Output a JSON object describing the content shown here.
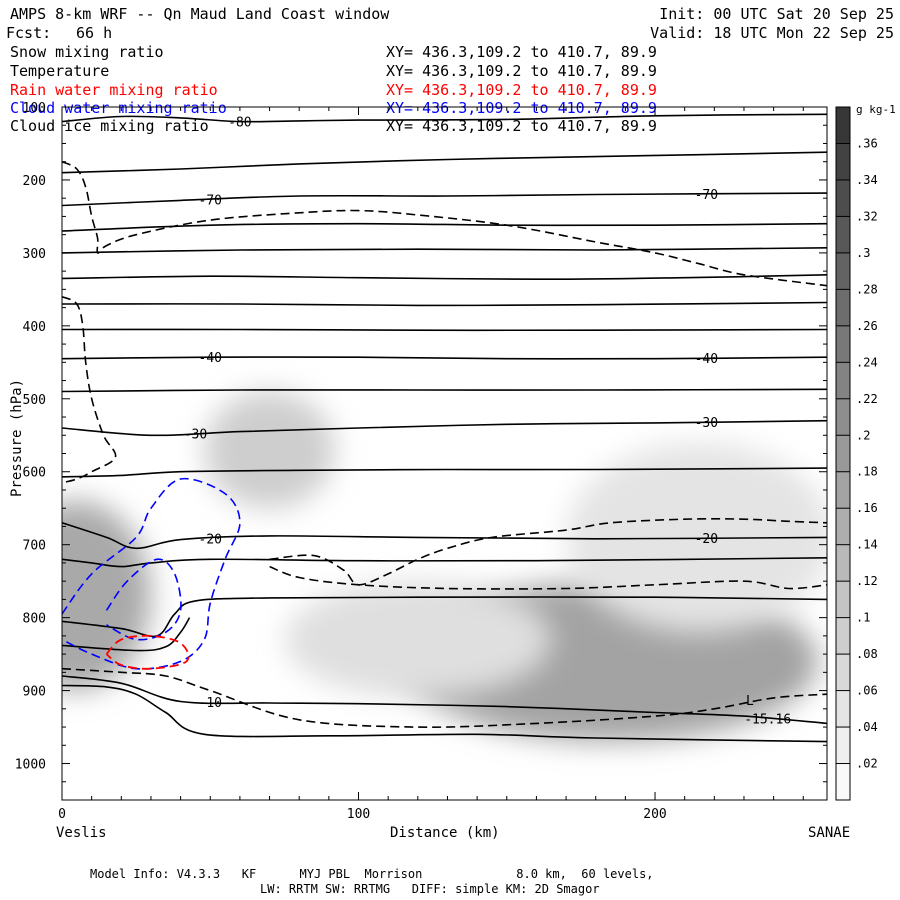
{
  "header": {
    "title": "AMPS 8-km WRF -- Qn Maud Land Coast window",
    "forecast_label": "Fcst:",
    "forecast_value": "66 h",
    "init": "Init: 00 UTC Sat 20 Sep 25",
    "valid": "Valid: 18 UTC Mon 22 Sep 25"
  },
  "legend": [
    {
      "name": "Snow mixing ratio",
      "xy": "XY= 436.3,109.2 to 410.7, 89.9",
      "color": "#000000"
    },
    {
      "name": "Temperature",
      "xy": "XY= 436.3,109.2 to 410.7, 89.9",
      "color": "#000000"
    },
    {
      "name": "Rain water mixing ratio",
      "xy": "XY= 436.3,109.2 to 410.7, 89.9",
      "color": "#ff0000"
    },
    {
      "name": "Cloud water mixing ratio",
      "xy": "XY= 436.3,109.2 to 410.7, 89.9",
      "color": "#0000ff"
    },
    {
      "name": "Cloud ice mixing ratio",
      "xy": "XY= 436.3,109.2 to 410.7, 89.9",
      "color": "#000000"
    }
  ],
  "footer": {
    "line1": "Model Info: V4.3.3   KF      MYJ PBL  Morrison             8.0 km,  60 levels,",
    "line2": "LW: RRTM SW: RRTMG   DIFF: simple KM: 2D Smagor"
  },
  "chart_data": {
    "type": "cross-section",
    "xlabel": "Distance (km)",
    "ylabel": "Pressure (hPa)",
    "xlim": [
      0,
      258
    ],
    "ylim": [
      100,
      1050
    ],
    "x_ticks": [
      0,
      100,
      200
    ],
    "y_ticks": [
      100,
      200,
      300,
      400,
      500,
      600,
      700,
      800,
      900,
      1000
    ],
    "left_endpoint": "Veslis",
    "right_endpoint": "SANAE",
    "colorbar": {
      "unit": "g kg-1",
      "ticks": [
        ".02",
        ".04",
        ".06",
        ".08",
        ".1",
        ".12",
        ".14",
        ".16",
        ".18",
        ".2",
        ".22",
        ".24",
        ".26",
        ".28",
        ".3",
        ".32",
        ".34",
        ".36"
      ],
      "range": [
        0,
        0.38
      ]
    },
    "snow_shading": [
      {
        "x": 5,
        "p": 770,
        "rx": 25,
        "rp": 130,
        "value": 0.16
      },
      {
        "x": 70,
        "p": 570,
        "rx": 22,
        "rp": 80,
        "value": 0.09
      },
      {
        "x": 185,
        "p": 860,
        "rx": 70,
        "rp": 110,
        "value": 0.17
      },
      {
        "x": 215,
        "p": 690,
        "rx": 45,
        "rp": 130,
        "value": 0.05
      },
      {
        "x": 120,
        "p": 830,
        "rx": 45,
        "rp": 80,
        "value": 0.06
      }
    ],
    "temperature_contours": [
      {
        "label": "-80",
        "label_x": 60,
        "points": [
          [
            0,
            120
          ],
          [
            20,
            113
          ],
          [
            40,
            115
          ],
          [
            60,
            120
          ],
          [
            80,
            119
          ],
          [
            100,
            118
          ],
          [
            150,
            117
          ],
          [
            200,
            112
          ],
          [
            258,
            110
          ]
        ]
      },
      {
        "label": "",
        "points": [
          [
            0,
            190
          ],
          [
            40,
            185
          ],
          [
            80,
            178
          ],
          [
            130,
            172
          ],
          [
            180,
            168
          ],
          [
            258,
            162
          ]
        ]
      },
      {
        "label": "-70",
        "label_x": 50,
        "points": [
          [
            0,
            235
          ],
          [
            40,
            228
          ],
          [
            80,
            222
          ],
          [
            130,
            222
          ],
          [
            180,
            220
          ],
          [
            258,
            218
          ]
        ]
      },
      {
        "label": "",
        "points": [
          [
            0,
            270
          ],
          [
            50,
            262
          ],
          [
            100,
            260
          ],
          [
            150,
            262
          ],
          [
            200,
            262
          ],
          [
            258,
            260
          ]
        ]
      },
      {
        "label": "",
        "points": [
          [
            0,
            300
          ],
          [
            60,
            296
          ],
          [
            120,
            295
          ],
          [
            180,
            296
          ],
          [
            258,
            293
          ]
        ]
      },
      {
        "label": "",
        "points": [
          [
            0,
            335
          ],
          [
            50,
            332
          ],
          [
            100,
            334
          ],
          [
            160,
            336
          ],
          [
            210,
            334
          ],
          [
            258,
            330
          ]
        ]
      },
      {
        "label": "",
        "points": [
          [
            0,
            370
          ],
          [
            60,
            370
          ],
          [
            120,
            372
          ],
          [
            180,
            371
          ],
          [
            258,
            368
          ]
        ]
      },
      {
        "label": "",
        "points": [
          [
            0,
            405
          ],
          [
            60,
            405
          ],
          [
            120,
            406
          ],
          [
            180,
            406
          ],
          [
            258,
            405
          ]
        ]
      },
      {
        "label": "-40",
        "label_x": 50,
        "points": [
          [
            0,
            445
          ],
          [
            50,
            443
          ],
          [
            100,
            443
          ],
          [
            150,
            445
          ],
          [
            200,
            445
          ],
          [
            258,
            443
          ]
        ]
      },
      {
        "label": "",
        "points": [
          [
            0,
            490
          ],
          [
            60,
            488
          ],
          [
            120,
            488
          ],
          [
            180,
            488
          ],
          [
            258,
            487
          ]
        ]
      },
      {
        "label": "-30",
        "label_x": 45,
        "points": [
          [
            0,
            540
          ],
          [
            30,
            550
          ],
          [
            60,
            545
          ],
          [
            100,
            540
          ],
          [
            150,
            535
          ],
          [
            200,
            533
          ],
          [
            258,
            530
          ]
        ]
      },
      {
        "label": "",
        "points": [
          [
            0,
            607
          ],
          [
            20,
            605
          ],
          [
            40,
            600
          ],
          [
            80,
            598
          ],
          [
            130,
            597
          ],
          [
            180,
            597
          ],
          [
            258,
            595
          ]
        ]
      },
      {
        "label": "-20",
        "label_x": 50,
        "points": [
          [
            0,
            670
          ],
          [
            15,
            690
          ],
          [
            25,
            705
          ],
          [
            40,
            693
          ],
          [
            70,
            688
          ],
          [
            120,
            690
          ],
          [
            180,
            692
          ],
          [
            258,
            690
          ]
        ]
      },
      {
        "label": "",
        "points": [
          [
            0,
            720
          ],
          [
            10,
            725
          ],
          [
            20,
            730
          ],
          [
            30,
            725
          ],
          [
            50,
            720
          ],
          [
            100,
            722
          ],
          [
            160,
            722
          ],
          [
            258,
            718
          ]
        ]
      },
      {
        "label": "",
        "points": [
          [
            0,
            805
          ],
          [
            20,
            815
          ],
          [
            32,
            825
          ],
          [
            38,
            795
          ],
          [
            45,
            777
          ],
          [
            70,
            773
          ],
          [
            120,
            772
          ],
          [
            200,
            772
          ],
          [
            258,
            775
          ]
        ]
      },
      {
        "label": "",
        "points": [
          [
            0,
            838
          ],
          [
            25,
            845
          ],
          [
            35,
            840
          ],
          [
            40,
            820
          ],
          [
            43,
            800
          ]
        ]
      },
      {
        "label": "-10",
        "label_x": 50,
        "points": [
          [
            0,
            880
          ],
          [
            20,
            890
          ],
          [
            40,
            915
          ],
          [
            70,
            917
          ],
          [
            100,
            918
          ],
          [
            150,
            922
          ],
          [
            200,
            930
          ],
          [
            230,
            935
          ],
          [
            258,
            945
          ]
        ]
      },
      {
        "label": "",
        "points": [
          [
            0,
            893
          ],
          [
            15,
            895
          ],
          [
            25,
            905
          ],
          [
            35,
            930
          ],
          [
            48,
            960
          ],
          [
            90,
            962
          ],
          [
            140,
            960
          ],
          [
            180,
            965
          ],
          [
            258,
            970
          ]
        ]
      }
    ],
    "snow_dashed_contours": [
      [
        [
          0,
          175
        ],
        [
          5,
          185
        ],
        [
          8,
          210
        ],
        [
          10,
          250
        ],
        [
          12,
          280
        ],
        [
          12,
          300
        ],
        [
          15,
          290
        ],
        [
          25,
          275
        ],
        [
          50,
          255
        ],
        [
          80,
          245
        ],
        [
          100,
          242
        ],
        [
          120,
          248
        ],
        [
          150,
          262
        ],
        [
          180,
          285
        ],
        [
          200,
          300
        ],
        [
          215,
          315
        ],
        [
          230,
          330
        ],
        [
          258,
          345
        ]
      ],
      [
        [
          0,
          360
        ],
        [
          5,
          370
        ],
        [
          7,
          400
        ],
        [
          8,
          450
        ],
        [
          10,
          500
        ],
        [
          14,
          550
        ],
        [
          18,
          580
        ],
        [
          10,
          600
        ],
        [
          5,
          610
        ],
        [
          0,
          615
        ]
      ],
      [
        [
          70,
          720
        ],
        [
          85,
          715
        ],
        [
          95,
          735
        ],
        [
          100,
          755
        ],
        [
          110,
          740
        ],
        [
          120,
          720
        ],
        [
          130,
          705
        ],
        [
          145,
          690
        ],
        [
          170,
          680
        ],
        [
          185,
          670
        ],
        [
          210,
          665
        ],
        [
          230,
          665
        ],
        [
          245,
          668
        ],
        [
          258,
          670
        ]
      ],
      [
        [
          70,
          730
        ],
        [
          80,
          745
        ],
        [
          100,
          755
        ],
        [
          130,
          760
        ],
        [
          170,
          760
        ],
        [
          200,
          755
        ],
        [
          230,
          750
        ],
        [
          245,
          760
        ],
        [
          258,
          755
        ]
      ],
      [
        [
          0,
          870
        ],
        [
          20,
          875
        ],
        [
          35,
          880
        ],
        [
          50,
          900
        ],
        [
          80,
          940
        ],
        [
          120,
          950
        ],
        [
          160,
          945
        ],
        [
          200,
          935
        ],
        [
          220,
          925
        ],
        [
          240,
          910
        ],
        [
          258,
          905
        ]
      ]
    ],
    "cloud_water_contours": [
      [
        [
          0,
          795
        ],
        [
          10,
          740
        ],
        [
          25,
          690
        ],
        [
          30,
          650
        ],
        [
          40,
          610
        ],
        [
          55,
          630
        ],
        [
          60,
          670
        ],
        [
          55,
          720
        ],
        [
          50,
          780
        ],
        [
          48,
          830
        ],
        [
          40,
          860
        ],
        [
          25,
          870
        ],
        [
          10,
          850
        ],
        [
          0,
          830
        ]
      ],
      [
        [
          15,
          790
        ],
        [
          22,
          750
        ],
        [
          32,
          720
        ],
        [
          38,
          740
        ],
        [
          40,
          790
        ],
        [
          35,
          820
        ],
        [
          25,
          830
        ],
        [
          15,
          810
        ]
      ]
    ],
    "rain_water_contours": [
      [
        [
          15,
          850
        ],
        [
          20,
          830
        ],
        [
          30,
          825
        ],
        [
          40,
          835
        ],
        [
          42,
          860
        ],
        [
          30,
          870
        ],
        [
          20,
          865
        ],
        [
          15,
          850
        ]
      ]
    ],
    "annotations": [
      {
        "text": "L",
        "x": 232,
        "p": 920
      },
      {
        "text": "-15.16",
        "x": 238,
        "p": 945
      }
    ]
  }
}
